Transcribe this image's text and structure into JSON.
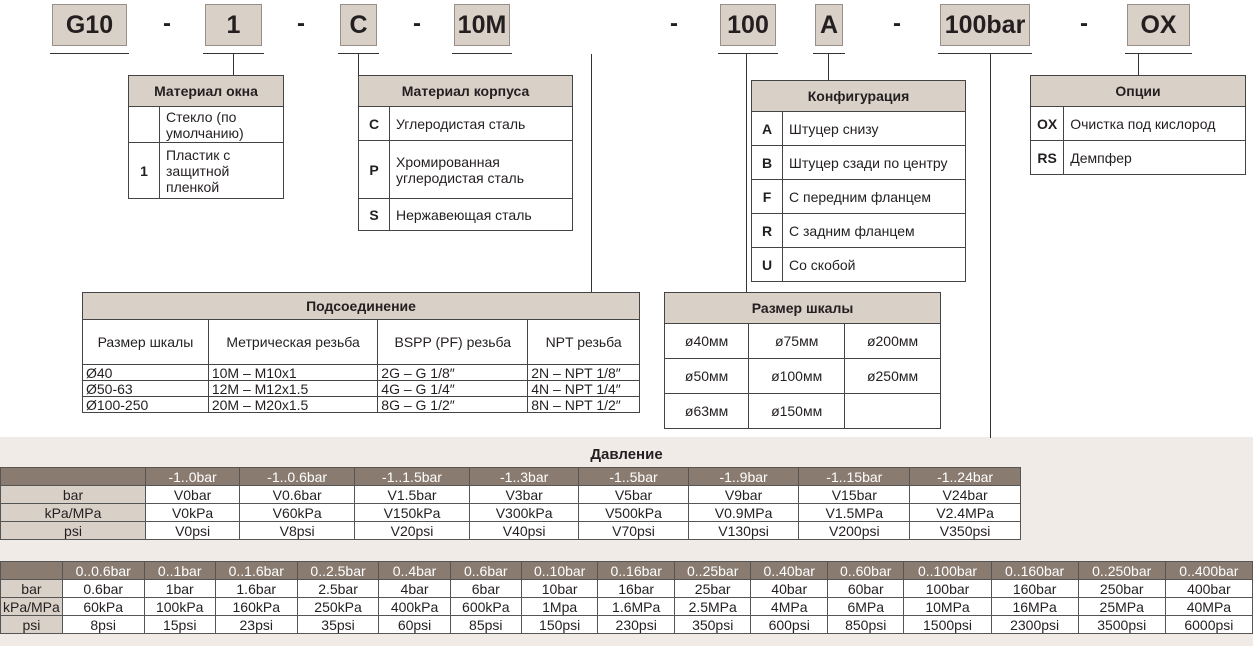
{
  "code": [
    "G10",
    "1",
    "C",
    "10M",
    "100",
    "A",
    "100bar",
    "OX"
  ],
  "separator": "-",
  "window": {
    "title": "Материал окна",
    "rows": [
      {
        "k": "",
        "v": "Стекло (по умолчанию)"
      },
      {
        "k": "1",
        "v": "Пластик с защитной пленкой"
      }
    ]
  },
  "body": {
    "title": "Материал корпуса",
    "rows": [
      {
        "k": "C",
        "v": "Углеродистая сталь"
      },
      {
        "k": "P",
        "v": "Хромированная углеродистая сталь"
      },
      {
        "k": "S",
        "v": "Нержавеющая сталь"
      }
    ]
  },
  "config": {
    "title": "Конфигурация",
    "rows": [
      {
        "k": "A",
        "v": "Штуцер снизу"
      },
      {
        "k": "B",
        "v": "Штуцер сзади по центру"
      },
      {
        "k": "F",
        "v": "С передним фланцем"
      },
      {
        "k": "R",
        "v": "С задним фланцем"
      },
      {
        "k": "U",
        "v": "Со скобой"
      }
    ]
  },
  "options": {
    "title": "Опции",
    "rows": [
      {
        "k": "OX",
        "v": "Очистка под кислород"
      },
      {
        "k": "RS",
        "v": "Демпфер"
      }
    ]
  },
  "connection": {
    "title": "Подсоединение",
    "headers": [
      "Размер шкалы",
      "Метрическая резьба",
      "BSPP (PF) резьба",
      "NPT резьба"
    ],
    "rows": [
      [
        "Ø40",
        "10M – M10x1",
        "2G – G 1/8″",
        "2N – NPT 1/8″"
      ],
      [
        "Ø50-63",
        "12M – M12x1.5",
        "4G – G 1/4″",
        "4N – NPT 1/4″"
      ],
      [
        "Ø100-250",
        "20M – M20x1.5",
        "8G – G 1/2″",
        "8N – NPT 1/2″"
      ]
    ]
  },
  "dial": {
    "title": "Размер шкалы",
    "rows": [
      [
        "ø40мм",
        "ø75мм",
        "ø200мм"
      ],
      [
        "ø50мм",
        "ø100мм",
        "ø250мм"
      ],
      [
        "ø63мм",
        "ø150мм",
        ""
      ]
    ]
  },
  "pressure": {
    "title": "Давление",
    "vacuum": {
      "ranges": [
        "-1..0bar",
        "-1..0.6bar",
        "-1..1.5bar",
        "-1..3bar",
        "-1..5bar",
        "-1..9bar",
        "-1..15bar",
        "-1..24bar"
      ],
      "rows": [
        {
          "unit": "bar",
          "v": [
            "V0bar",
            "V0.6bar",
            "V1.5bar",
            "V3bar",
            "V5bar",
            "V9bar",
            "V15bar",
            "V24bar"
          ]
        },
        {
          "unit": "kPa/MPa",
          "v": [
            "V0kPa",
            "V60kPa",
            "V150kPa",
            "V300kPa",
            "V500kPa",
            "V0.9MPa",
            "V1.5MPa",
            "V2.4MPa"
          ]
        },
        {
          "unit": "psi",
          "v": [
            "V0psi",
            "V8psi",
            "V20psi",
            "V40psi",
            "V70psi",
            "V130psi",
            "V200psi",
            "V350psi"
          ]
        }
      ]
    },
    "positive": {
      "ranges": [
        "0..0.6bar",
        "0..1bar",
        "0..1.6bar",
        "0..2.5bar",
        "0..4bar",
        "0..6bar",
        "0..10bar",
        "0..16bar",
        "0..25bar",
        "0..40bar",
        "0..60bar",
        "0..100bar",
        "0..160bar",
        "0..250bar",
        "0..400bar"
      ],
      "rows": [
        {
          "unit": "bar",
          "v": [
            "0.6bar",
            "1bar",
            "1.6bar",
            "2.5bar",
            "4bar",
            "6bar",
            "10bar",
            "16bar",
            "25bar",
            "40bar",
            "60bar",
            "100bar",
            "160bar",
            "250bar",
            "400bar"
          ]
        },
        {
          "unit": "kPa/MPa",
          "v": [
            "60kPa",
            "100kPa",
            "160kPa",
            "250kPa",
            "400kPa",
            "600kPa",
            "1Mpa",
            "1.6MPa",
            "2.5MPa",
            "4MPa",
            "6MPa",
            "10MPa",
            "16MPa",
            "25MPa",
            "40MPa"
          ]
        },
        {
          "unit": "psi",
          "v": [
            "8psi",
            "15psi",
            "23psi",
            "35psi",
            "60psi",
            "85psi",
            "150psi",
            "230psi",
            "350psi",
            "600psi",
            "850psi",
            "1500psi",
            "2300psi",
            "3500psi",
            "6000psi"
          ]
        }
      ]
    }
  }
}
